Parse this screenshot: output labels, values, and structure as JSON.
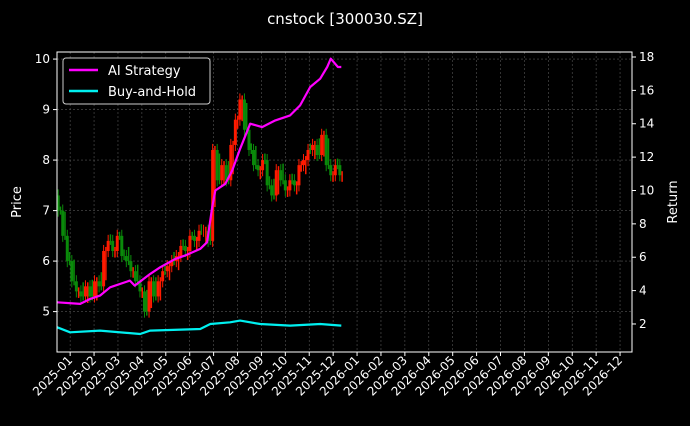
{
  "chart_data": {
    "type": "line",
    "title": "cnstock [300030.SZ]",
    "xlabel": "",
    "ylabel": "Price",
    "ylabel_right": "Return",
    "x_units": "months since 2025-01-01",
    "xlim": [
      -0.55,
      23.5
    ],
    "ylim": [
      4.2,
      10.14
    ],
    "ylim_right": [
      0.32,
      18.3
    ],
    "yticks": [
      5,
      6,
      7,
      8,
      9,
      10
    ],
    "yticks_right": [
      2,
      4,
      6,
      8,
      10,
      12,
      14,
      16,
      18
    ],
    "xticks": [
      "2025-01",
      "2025-02",
      "2025-03",
      "2025-04",
      "2025-05",
      "2025-06",
      "2025-07",
      "2025-08",
      "2025-09",
      "2025-10",
      "2025-11",
      "2025-12",
      "2026-01",
      "2026-02",
      "2026-03",
      "2026-04",
      "2026-05",
      "2026-06",
      "2026-07",
      "2026-08",
      "2026-09",
      "2026-10",
      "2026-11",
      "2026-12"
    ],
    "grid": true,
    "legend_position": "top-left",
    "candles": {
      "start_month": -0.5,
      "step_month": 0.19,
      "first_open": 7.3,
      "closes": [
        7.0,
        6.5,
        6.0,
        5.6,
        5.4,
        5.3,
        5.5,
        5.3,
        5.6,
        5.5,
        6.2,
        6.4,
        6.2,
        6.5,
        6.1,
        6.0,
        5.8,
        5.6,
        5.4,
        5.0,
        5.6,
        5.3,
        5.6,
        5.8,
        5.9,
        6.0,
        6.1,
        6.3,
        6.2,
        6.5,
        6.4,
        6.6,
        6.6,
        6.4,
        8.2,
        7.6,
        7.9,
        7.6,
        8.3,
        8.8,
        9.2,
        8.6,
        8.2,
        7.9,
        7.8,
        8.0,
        7.5,
        7.3,
        7.8,
        7.6,
        7.4,
        7.6,
        7.5,
        7.9,
        8.0,
        8.2,
        8.3,
        8.1,
        8.5,
        7.9,
        7.7,
        7.9,
        7.7
      ],
      "up_color": "#ff1a00",
      "down_color": "#0a8a0a"
    },
    "series": [
      {
        "name": "AI Strategy",
        "axis": "right",
        "color": "#ff00ff",
        "points": [
          [
            -0.54,
            3.3
          ],
          [
            0.42,
            3.2
          ],
          [
            0.84,
            3.5
          ],
          [
            1.25,
            3.7
          ],
          [
            1.67,
            4.2
          ],
          [
            2.5,
            4.6
          ],
          [
            2.7,
            4.3
          ],
          [
            3.35,
            5.0
          ],
          [
            3.77,
            5.4
          ],
          [
            4.4,
            5.9
          ],
          [
            4.8,
            6.1
          ],
          [
            5.44,
            6.5
          ],
          [
            5.73,
            6.9
          ],
          [
            5.94,
            9.0
          ],
          [
            6.07,
            10.0
          ],
          [
            6.49,
            10.4
          ],
          [
            6.78,
            11.2
          ],
          [
            7.11,
            12.5
          ],
          [
            7.53,
            14.0
          ],
          [
            8.03,
            13.8
          ],
          [
            8.58,
            14.2
          ],
          [
            9.2,
            14.5
          ],
          [
            9.62,
            15.1
          ],
          [
            10.04,
            16.2
          ],
          [
            10.46,
            16.7
          ],
          [
            10.75,
            17.4
          ],
          [
            10.9,
            17.9
          ],
          [
            11.2,
            17.4
          ],
          [
            11.34,
            17.4
          ]
        ]
      },
      {
        "name": "Buy-and-Hold",
        "axis": "right",
        "color": "#00f0f0",
        "points": [
          [
            -0.54,
            1.8
          ],
          [
            0.0,
            1.5
          ],
          [
            1.25,
            1.6
          ],
          [
            2.93,
            1.4
          ],
          [
            3.35,
            1.6
          ],
          [
            5.44,
            1.7
          ],
          [
            5.86,
            2.0
          ],
          [
            6.69,
            2.1
          ],
          [
            7.11,
            2.2
          ],
          [
            7.95,
            2.0
          ],
          [
            9.2,
            1.9
          ],
          [
            10.46,
            2.0
          ],
          [
            11.34,
            1.9
          ]
        ]
      }
    ]
  }
}
